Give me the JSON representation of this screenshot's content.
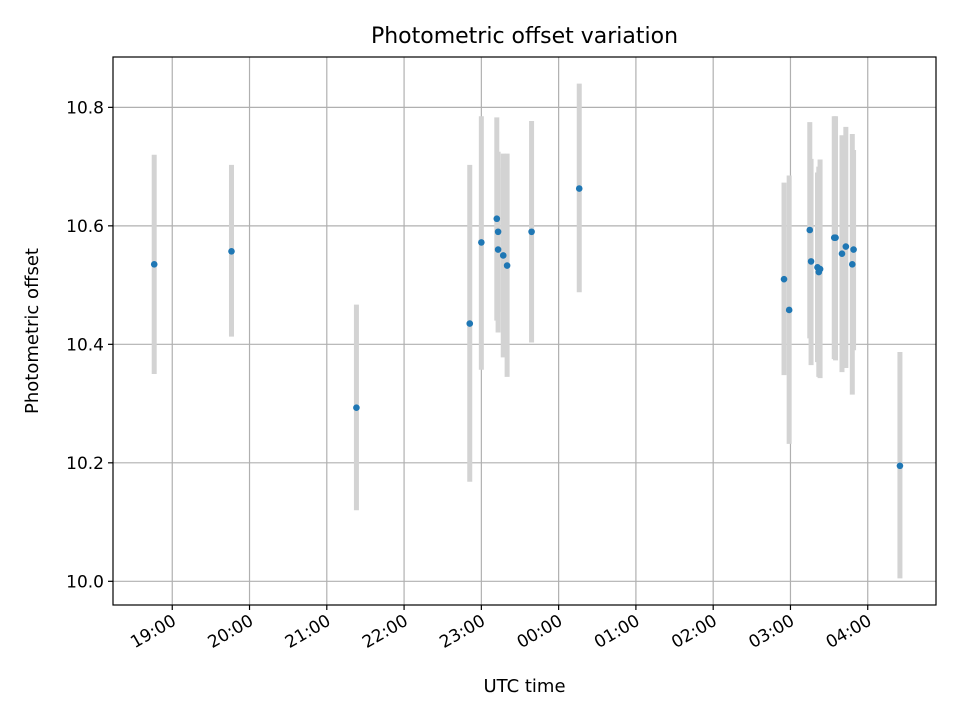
{
  "chart_data": {
    "type": "scatter",
    "title": "Photometric offset variation",
    "xlabel": "UTC time",
    "ylabel": "Photometric offset",
    "x_axis_type": "time",
    "xlim": [
      "18:14",
      "04:53"
    ],
    "ylim": [
      9.96,
      10.885
    ],
    "x_ticks": [
      "19:00",
      "20:00",
      "21:00",
      "22:00",
      "23:00",
      "00:00",
      "01:00",
      "02:00",
      "03:00",
      "04:00"
    ],
    "y_ticks": [
      "10.0",
      "10.2",
      "10.4",
      "10.6",
      "10.8"
    ],
    "y_tick_values": [
      10.0,
      10.2,
      10.4,
      10.6,
      10.8
    ],
    "grid": true,
    "legend": "none",
    "point_color": "#1f77b4",
    "errorbar_color": "#d3d3d3",
    "points": [
      {
        "t": "18:46",
        "y": 10.535,
        "lo": 10.35,
        "hi": 10.72
      },
      {
        "t": "19:46",
        "y": 10.557,
        "lo": 10.413,
        "hi": 10.703
      },
      {
        "t": "21:23",
        "y": 10.293,
        "lo": 10.12,
        "hi": 10.467
      },
      {
        "t": "22:51",
        "y": 10.435,
        "lo": 10.168,
        "hi": 10.703
      },
      {
        "t": "23:00",
        "y": 10.572,
        "lo": 10.357,
        "hi": 10.785
      },
      {
        "t": "23:12",
        "y": 10.612,
        "lo": 10.44,
        "hi": 10.783
      },
      {
        "t": "23:13",
        "y": 10.59,
        "lo": 10.453,
        "hi": 10.725
      },
      {
        "t": "23:13",
        "y": 10.56,
        "lo": 10.42,
        "hi": 10.698
      },
      {
        "t": "23:17",
        "y": 10.55,
        "lo": 10.378,
        "hi": 10.722
      },
      {
        "t": "23:20",
        "y": 10.533,
        "lo": 10.345,
        "hi": 10.722
      },
      {
        "t": "23:39",
        "y": 10.59,
        "lo": 10.403,
        "hi": 10.777
      },
      {
        "t": "00:16",
        "y": 10.663,
        "lo": 10.488,
        "hi": 10.84
      },
      {
        "t": "02:55",
        "y": 10.51,
        "lo": 10.348,
        "hi": 10.673
      },
      {
        "t": "02:59",
        "y": 10.458,
        "lo": 10.232,
        "hi": 10.685
      },
      {
        "t": "03:15",
        "y": 10.593,
        "lo": 10.41,
        "hi": 10.775
      },
      {
        "t": "03:16",
        "y": 10.54,
        "lo": 10.365,
        "hi": 10.713
      },
      {
        "t": "03:21",
        "y": 10.53,
        "lo": 10.37,
        "hi": 10.69
      },
      {
        "t": "03:22",
        "y": 10.522,
        "lo": 10.345,
        "hi": 10.7
      },
      {
        "t": "03:23",
        "y": 10.527,
        "lo": 10.343,
        "hi": 10.712
      },
      {
        "t": "03:34",
        "y": 10.58,
        "lo": 10.375,
        "hi": 10.785
      },
      {
        "t": "03:35",
        "y": 10.58,
        "lo": 10.373,
        "hi": 10.785
      },
      {
        "t": "03:40",
        "y": 10.553,
        "lo": 10.353,
        "hi": 10.753
      },
      {
        "t": "03:43",
        "y": 10.565,
        "lo": 10.36,
        "hi": 10.767
      },
      {
        "t": "03:48",
        "y": 10.535,
        "lo": 10.315,
        "hi": 10.755
      },
      {
        "t": "03:49",
        "y": 10.56,
        "lo": 10.39,
        "hi": 10.728
      },
      {
        "t": "04:25",
        "y": 10.195,
        "lo": 10.005,
        "hi": 10.387
      }
    ]
  }
}
